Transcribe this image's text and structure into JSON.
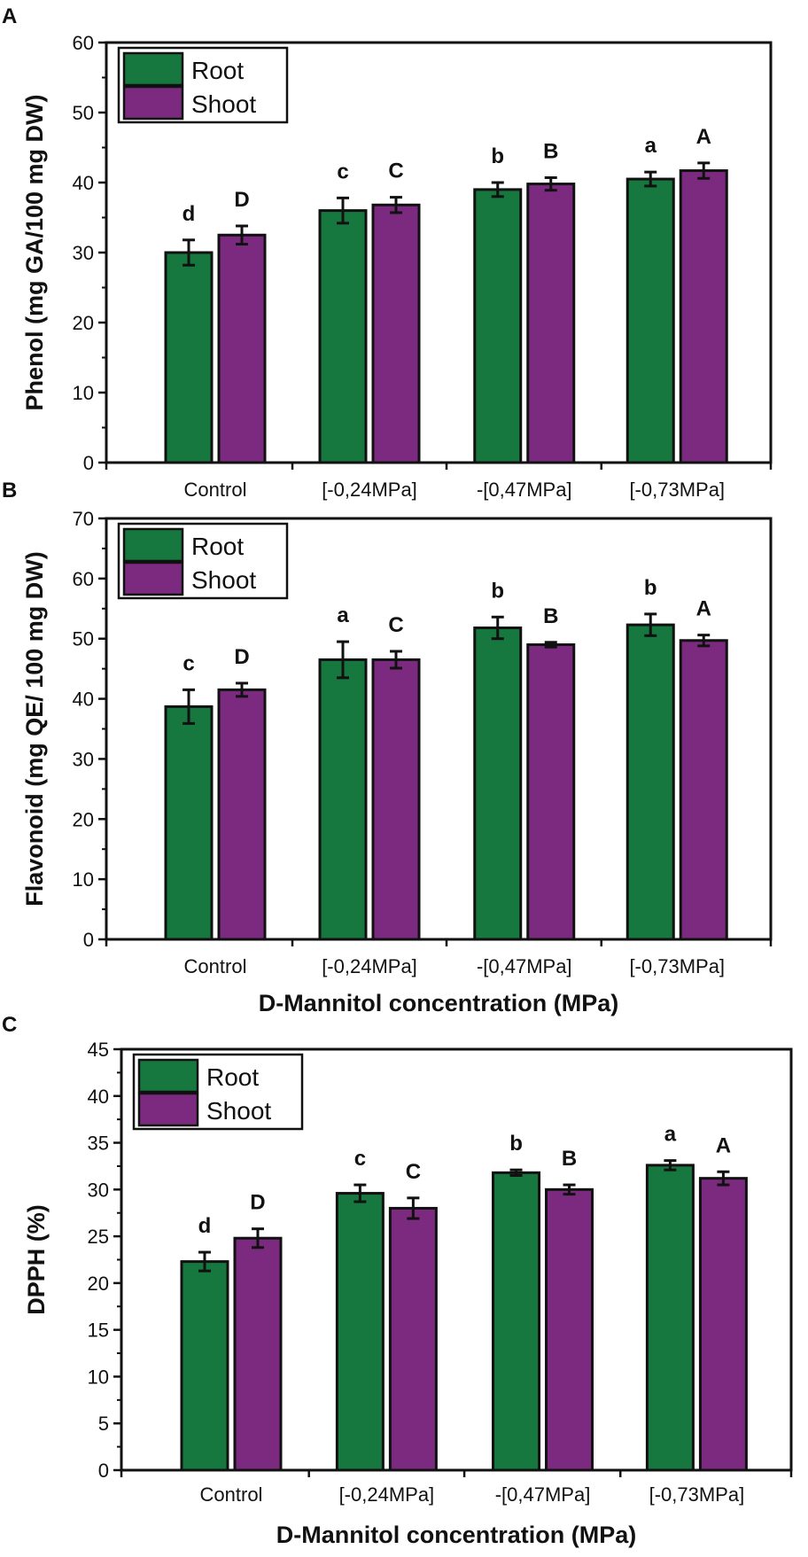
{
  "colors": {
    "root": "#16773f",
    "shoot": "#7b2a80",
    "axis": "#111111"
  },
  "legend": {
    "root": "Root",
    "shoot": "Shoot"
  },
  "chart_data": [
    {
      "panel": "A",
      "type": "bar",
      "categories": [
        "Control",
        "[-0,24MPa]",
        "-[0,47MPa]",
        "[-0,73MPa]"
      ],
      "ylabel": "Phenol (mg GA/100 mg DW)",
      "xlabel": "",
      "ylim": [
        0,
        60
      ],
      "ytick_step": 10,
      "yticks": [
        "0",
        "10",
        "20",
        "30",
        "40",
        "50",
        "60"
      ],
      "legend_position": "top-left",
      "series": [
        {
          "name": "Root",
          "values": [
            30.0,
            36.0,
            39.0,
            40.5
          ],
          "errors": [
            1.8,
            1.8,
            1.0,
            1.0
          ],
          "letters": [
            "d",
            "c",
            "b",
            "a"
          ]
        },
        {
          "name": "Shoot",
          "values": [
            32.5,
            36.8,
            39.8,
            41.7
          ],
          "errors": [
            1.3,
            1.1,
            0.9,
            1.1
          ],
          "letters": [
            "D",
            "C",
            "B",
            "A"
          ]
        }
      ]
    },
    {
      "panel": "B",
      "type": "bar",
      "categories": [
        "Control",
        "[-0,24MPa]",
        "-[0,47MPa]",
        "[-0,73MPa]"
      ],
      "ylabel": "Flavonoid (mg QE/ 100 mg DW)",
      "xlabel": "D-Mannitol concentration (MPa)",
      "ylim": [
        0,
        70
      ],
      "ytick_step": 10,
      "yticks": [
        "0",
        "10",
        "20",
        "30",
        "40",
        "50",
        "60",
        "70"
      ],
      "legend_position": "top-left",
      "series": [
        {
          "name": "Root",
          "values": [
            38.7,
            46.5,
            51.8,
            52.3
          ],
          "errors": [
            2.8,
            3.0,
            1.8,
            1.8
          ],
          "letters": [
            "c",
            "a",
            "b",
            "b"
          ]
        },
        {
          "name": "Shoot",
          "values": [
            41.5,
            46.5,
            49.0,
            49.7
          ],
          "errors": [
            1.1,
            1.4,
            0.4,
            0.9
          ],
          "letters": [
            "D",
            "C",
            "B",
            "A"
          ]
        }
      ]
    },
    {
      "panel": "C",
      "type": "bar",
      "categories": [
        "Control",
        "[-0,24MPa]",
        "-[0,47MPa]",
        "[-0,73MPa]"
      ],
      "ylabel": "DPPH (%)",
      "xlabel": "D-Mannitol concentration (MPa)",
      "ylim": [
        0,
        45
      ],
      "ytick_step": 5,
      "yticks": [
        "0",
        "5",
        "10",
        "15",
        "20",
        "25",
        "30",
        "35",
        "40",
        "45"
      ],
      "legend_position": "top-left",
      "series": [
        {
          "name": "Root",
          "values": [
            22.3,
            29.6,
            31.8,
            32.6
          ],
          "errors": [
            1.0,
            0.9,
            0.3,
            0.5
          ],
          "letters": [
            "d",
            "c",
            "b",
            "a"
          ]
        },
        {
          "name": "Shoot",
          "values": [
            24.8,
            28.0,
            30.0,
            31.2
          ],
          "errors": [
            1.0,
            1.1,
            0.5,
            0.7
          ],
          "letters": [
            "D",
            "C",
            "B",
            "A"
          ]
        }
      ]
    }
  ]
}
